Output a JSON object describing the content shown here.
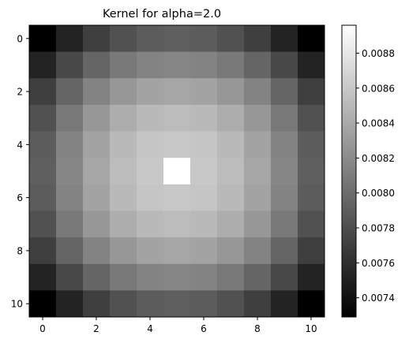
{
  "chart_data": {
    "type": "heatmap",
    "title": "Kernel for alpha=2.0",
    "xlabel": "",
    "ylabel": "",
    "colormap": "gray",
    "grid": false,
    "rows": 11,
    "cols": 11,
    "x_range": [
      -0.5,
      10.5
    ],
    "y_range": [
      10.5,
      -0.5
    ],
    "x_ticks": [
      0,
      2,
      4,
      6,
      8,
      10
    ],
    "y_ticks": [
      0,
      2,
      4,
      6,
      8,
      10
    ],
    "colorbar": {
      "min": 0.00729,
      "max": 0.00896,
      "ticks": [
        0.0074,
        0.0076,
        0.0078,
        0.008,
        0.0082,
        0.0084,
        0.0086,
        0.0088
      ],
      "tick_labels": [
        "0.0074",
        "0.0076",
        "0.0078",
        "0.0080",
        "0.0082",
        "0.0084",
        "0.0086",
        "0.0088"
      ]
    },
    "values": [
      [
        0.00729,
        0.00752,
        0.0077,
        0.00782,
        0.00789,
        0.00791,
        0.00789,
        0.00782,
        0.0077,
        0.00752,
        0.00729
      ],
      [
        0.00752,
        0.00776,
        0.00795,
        0.00808,
        0.00815,
        0.00817,
        0.00815,
        0.00808,
        0.00795,
        0.00776,
        0.00752
      ],
      [
        0.0077,
        0.00795,
        0.00815,
        0.00828,
        0.00836,
        0.00838,
        0.00836,
        0.00828,
        0.00815,
        0.00795,
        0.0077
      ],
      [
        0.00782,
        0.00808,
        0.00828,
        0.00842,
        0.0085,
        0.00852,
        0.0085,
        0.00842,
        0.00828,
        0.00808,
        0.00782
      ],
      [
        0.00789,
        0.00815,
        0.00836,
        0.0085,
        0.00858,
        0.0086,
        0.00858,
        0.0085,
        0.00836,
        0.00815,
        0.00789
      ],
      [
        0.00791,
        0.00817,
        0.00838,
        0.00852,
        0.0086,
        0.00896,
        0.0086,
        0.00852,
        0.00838,
        0.00817,
        0.00791
      ],
      [
        0.00789,
        0.00815,
        0.00836,
        0.0085,
        0.00858,
        0.0086,
        0.00858,
        0.0085,
        0.00836,
        0.00815,
        0.00789
      ],
      [
        0.00782,
        0.00808,
        0.00828,
        0.00842,
        0.0085,
        0.00852,
        0.0085,
        0.00842,
        0.00828,
        0.00808,
        0.00782
      ],
      [
        0.0077,
        0.00795,
        0.00815,
        0.00828,
        0.00836,
        0.00838,
        0.00836,
        0.00828,
        0.00815,
        0.00795,
        0.0077
      ],
      [
        0.00752,
        0.00776,
        0.00795,
        0.00808,
        0.00815,
        0.00817,
        0.00815,
        0.00808,
        0.00795,
        0.00776,
        0.00752
      ],
      [
        0.00729,
        0.00752,
        0.0077,
        0.00782,
        0.00789,
        0.00791,
        0.00789,
        0.00782,
        0.0077,
        0.00752,
        0.00729
      ]
    ]
  }
}
